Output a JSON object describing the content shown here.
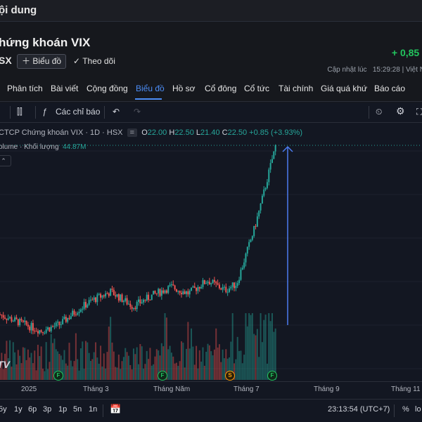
{
  "header": {
    "title": "ội dung"
  },
  "stock": {
    "name": "hứng khoán VIX",
    "exchange": "SX",
    "change": "+ 0,85 /",
    "chart_button": "Biểu đồ",
    "follow_label": "Theo dõi",
    "updated_label": "Cập nhật lúc",
    "updated_time": "15:29:28 | Việt N"
  },
  "tabs": [
    "Phân tích",
    "Bài viết",
    "Cộng đồng",
    "Biểu đồ",
    "Hồ sơ",
    "Cổ đông",
    "Cổ tức",
    "Tài chính",
    "Giá quá khứ",
    "Báo cáo"
  ],
  "active_tab": "Biểu đồ",
  "chart_toolbar": {
    "indicators_label": "Các chỉ báo"
  },
  "legend": {
    "symbol": "CTCP Chứng khoán VIX · 1D · HSX",
    "o_label": "O",
    "o": "22.00",
    "h_label": "H",
    "h": "22.50",
    "l_label": "L",
    "l": "21.40",
    "c_label": "C",
    "c": "22.50",
    "chg": "+0.85 (+3.93%)",
    "volume_label": "olume · Khối lượng",
    "volume_value": "44.87M"
  },
  "watermark": "TV",
  "x_axis": [
    "2025",
    "Tháng 3",
    "Tháng Năm",
    "Tháng 7",
    "Tháng 9",
    "Tháng 11"
  ],
  "markers": [
    {
      "type": "F",
      "x_day": 120
    },
    {
      "type": "F",
      "x_day": 200
    },
    {
      "type": "S",
      "x_day": 225
    },
    {
      "type": "F",
      "x_day": 280
    }
  ],
  "bottom_bar": {
    "ranges": [
      "5y",
      "1y",
      "6p",
      "3p",
      "1p",
      "5n",
      "1n"
    ],
    "time": "23:13:54 (UTC+7)",
    "percent": "%",
    "log": "lo"
  },
  "colors": {
    "up": "#26a69a",
    "down": "#ef5350",
    "accent": "#4c8df6",
    "positive": "#22c55e"
  },
  "chart_data": {
    "type": "candlestick",
    "x_unit": "date",
    "price_close": [
      {
        "date": "2024-12-16",
        "close": 12.1
      },
      {
        "date": "2025-01-02",
        "close": 11.6
      },
      {
        "date": "2025-01-20",
        "close": 11.1
      },
      {
        "date": "2025-02-05",
        "close": 11.5
      },
      {
        "date": "2025-02-20",
        "close": 12.4
      },
      {
        "date": "2025-03-05",
        "close": 13.0
      },
      {
        "date": "2025-03-20",
        "close": 13.5
      },
      {
        "date": "2025-04-08",
        "close": 12.6
      },
      {
        "date": "2025-04-25",
        "close": 13.3
      },
      {
        "date": "2025-05-10",
        "close": 13.8
      },
      {
        "date": "2025-05-25",
        "close": 13.4
      },
      {
        "date": "2025-06-10",
        "close": 14.2
      },
      {
        "date": "2025-06-25",
        "close": 13.6
      },
      {
        "date": "2025-07-05",
        "close": 14.0
      },
      {
        "date": "2025-07-12",
        "close": 15.6
      },
      {
        "date": "2025-07-20",
        "close": 17.4
      },
      {
        "date": "2025-07-28",
        "close": 19.6
      },
      {
        "date": "2025-08-04",
        "close": 21.65
      },
      {
        "date": "2025-08-07",
        "close": 22.5
      }
    ]
  }
}
